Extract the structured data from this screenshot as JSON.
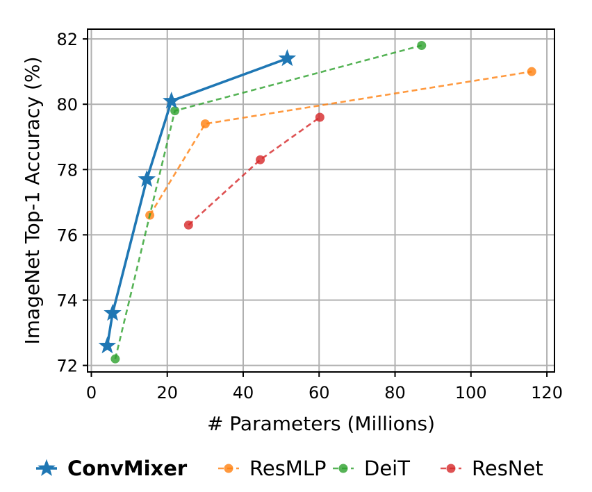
{
  "chart_data": {
    "type": "line",
    "title": "",
    "xlabel": "# Parameters (Millions)",
    "ylabel": "ImageNet Top-1 Accuracy (%)",
    "xlim": [
      -1,
      122
    ],
    "ylim": [
      71.8,
      82.3
    ],
    "xticks": [
      "0",
      "20",
      "40",
      "60",
      "80",
      "100",
      "120"
    ],
    "yticks": [
      "72",
      "74",
      "76",
      "78",
      "80",
      "82"
    ],
    "grid": true,
    "legend_position": "bottom",
    "series": [
      {
        "name": "ConvMixer",
        "color": "#1f77b4",
        "marker": "star",
        "line_style": "solid",
        "x": [
          4.2,
          5.6,
          14.6,
          21.1,
          51.6
        ],
        "y": [
          72.6,
          73.6,
          77.7,
          80.1,
          81.4
        ]
      },
      {
        "name": "ResMLP",
        "color": "#ff7f0e",
        "marker": "circle",
        "line_style": "dashed",
        "x": [
          15.4,
          30,
          116
        ],
        "y": [
          76.6,
          79.4,
          81.0
        ]
      },
      {
        "name": "DeiT",
        "color": "#2ca02c",
        "marker": "circle",
        "line_style": "dashed",
        "x": [
          6.3,
          22,
          87
        ],
        "y": [
          72.2,
          79.8,
          81.8
        ]
      },
      {
        "name": "ResNet",
        "color": "#d62728",
        "marker": "circle",
        "line_style": "dashed",
        "x": [
          25.6,
          44.5,
          60.2
        ],
        "y": [
          76.3,
          78.3,
          79.6
        ]
      }
    ]
  }
}
